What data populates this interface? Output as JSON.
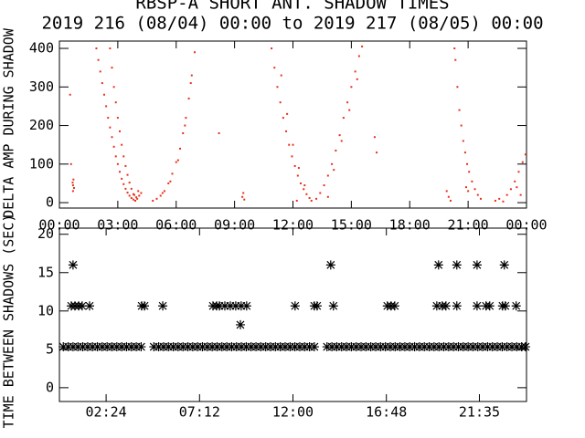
{
  "chart_data": [
    {
      "type": "scatter",
      "title": "RBSP-A SHORT ANT. SHADOW TIMES",
      "subtitle": "2019 216 (08/04) 00:00 to 2019 217 (08/05) 00:00",
      "y_label": "DELTA AMP DURING SHADOW",
      "color": "#e8301a",
      "marker": "dot",
      "xlim": [
        0,
        24
      ],
      "ylim": [
        -14,
        419
      ],
      "xticks": [
        {
          "value": 0,
          "label": "00:00"
        },
        {
          "value": 3,
          "label": "03:00"
        },
        {
          "value": 6,
          "label": "06:00"
        },
        {
          "value": 9,
          "label": "09:00"
        },
        {
          "value": 12,
          "label": "12:00"
        },
        {
          "value": 15,
          "label": "15:00"
        },
        {
          "value": 18,
          "label": "18:00"
        },
        {
          "value": 21,
          "label": "21:00"
        },
        {
          "value": 24,
          "label": "00:00"
        }
      ],
      "yticks": [
        0,
        100,
        200,
        300,
        400
      ],
      "x": [
        0.7,
        0.7,
        0.72,
        0.75,
        0.68,
        0.6,
        0.55,
        1.9,
        2.0,
        2.1,
        2.2,
        2.3,
        2.4,
        2.5,
        2.6,
        2.7,
        2.8,
        2.9,
        3.0,
        3.1,
        3.2,
        3.3,
        3.4,
        3.5,
        3.6,
        3.7,
        3.8,
        3.9,
        2.6,
        2.7,
        2.8,
        2.9,
        3.0,
        3.1,
        3.2,
        3.3,
        3.4,
        3.5,
        3.6,
        3.7,
        3.8,
        3.95,
        4.0,
        4.1,
        4.2,
        4.05,
        3.85,
        4.8,
        5.0,
        5.2,
        5.4,
        5.6,
        5.8,
        6.0,
        6.2,
        6.35,
        6.5,
        6.65,
        6.8,
        6.95,
        5.3,
        5.7,
        6.1,
        6.45,
        6.75,
        8.2,
        9.4,
        9.45,
        9.5,
        10.9,
        11.05,
        11.2,
        11.35,
        11.5,
        11.65,
        11.8,
        11.95,
        12.1,
        12.25,
        12.4,
        12.55,
        12.7,
        12.85,
        12.95,
        11.4,
        11.7,
        12.0,
        12.3,
        12.6,
        13.2,
        13.4,
        13.6,
        13.8,
        14.0,
        14.2,
        14.4,
        14.6,
        14.8,
        15.0,
        15.2,
        15.4,
        15.55,
        14.1,
        14.5,
        14.9,
        15.3,
        16.3,
        16.2,
        13.8,
        12.2,
        20.3,
        20.35,
        20.45,
        20.55,
        20.65,
        20.75,
        20.85,
        20.95,
        21.05,
        21.2,
        21.35,
        21.5,
        21.65,
        19.9,
        20.0,
        20.1,
        20.9,
        21.0,
        22.4,
        22.6,
        22.8,
        23.0,
        23.2,
        23.4,
        23.6,
        23.8,
        23.95,
        23.7,
        23.5
      ],
      "values": [
        30,
        45,
        60,
        38,
        52,
        100,
        280,
        400,
        370,
        340,
        310,
        280,
        250,
        220,
        195,
        170,
        145,
        120,
        100,
        80,
        62,
        48,
        36,
        26,
        18,
        12,
        8,
        5,
        400,
        350,
        300,
        260,
        220,
        185,
        150,
        120,
        95,
        72,
        52,
        36,
        22,
        14,
        10,
        18,
        25,
        30,
        20,
        5,
        10,
        18,
        30,
        50,
        75,
        105,
        140,
        180,
        220,
        270,
        330,
        390,
        25,
        55,
        110,
        200,
        310,
        180,
        15,
        25,
        8,
        400,
        350,
        300,
        260,
        220,
        185,
        150,
        120,
        95,
        70,
        50,
        35,
        22,
        12,
        5,
        330,
        230,
        150,
        90,
        45,
        10,
        25,
        45,
        70,
        100,
        135,
        175,
        220,
        260,
        300,
        340,
        380,
        405,
        85,
        160,
        240,
        320,
        130,
        170,
        15,
        5,
        400,
        370,
        300,
        240,
        200,
        160,
        130,
        100,
        80,
        55,
        35,
        20,
        10,
        30,
        15,
        5,
        40,
        30,
        5,
        10,
        3,
        20,
        35,
        55,
        80,
        105,
        125,
        20,
        40
      ]
    },
    {
      "type": "scatter",
      "y_label": "TIME BETWEEN SHADOWS (SEC)",
      "color": "#000000",
      "marker": "asterisk",
      "xlim": [
        0,
        24
      ],
      "ylim": [
        -1.8,
        20.8
      ],
      "xticks": [
        {
          "value": 2.4,
          "label": "02:24"
        },
        {
          "value": 7.2,
          "label": "07:12"
        },
        {
          "value": 12,
          "label": "12:00"
        },
        {
          "value": 16.8,
          "label": "16:48"
        },
        {
          "value": 21.58,
          "label": "21:35"
        }
      ],
      "yticks": [
        0,
        5,
        10,
        15,
        20
      ],
      "x": [
        0.2,
        0.45,
        0.7,
        0.95,
        1.2,
        1.45,
        1.7,
        1.95,
        2.2,
        2.45,
        2.7,
        2.95,
        3.2,
        3.45,
        3.7,
        3.95,
        4.2,
        4.85,
        5.1,
        5.35,
        5.6,
        5.85,
        6.1,
        6.35,
        6.6,
        6.85,
        7.1,
        7.35,
        7.6,
        7.85,
        8.1,
        8.35,
        8.6,
        8.85,
        9.1,
        9.35,
        9.6,
        9.85,
        10.1,
        10.35,
        10.6,
        10.85,
        11.1,
        11.35,
        11.6,
        11.85,
        12.1,
        12.35,
        12.6,
        12.85,
        13.1,
        13.75,
        14.0,
        14.25,
        14.5,
        14.75,
        15.0,
        15.25,
        15.5,
        15.75,
        16.0,
        16.25,
        16.5,
        16.75,
        17.0,
        17.25,
        17.5,
        17.75,
        18.0,
        18.25,
        18.5,
        18.75,
        19.0,
        19.25,
        19.5,
        19.75,
        20.0,
        20.25,
        20.5,
        20.75,
        21.0,
        21.25,
        21.5,
        21.75,
        22.0,
        22.25,
        22.5,
        22.75,
        23.0,
        23.25,
        23.5,
        23.75,
        23.95,
        0.7,
        13.94,
        19.48,
        20.42,
        21.46,
        22.86,
        0.61,
        0.8,
        0.99,
        1.17,
        1.55,
        4.23,
        4.37,
        5.31,
        7.89,
        8.08,
        8.22,
        8.5,
        8.78,
        9.06,
        9.34,
        9.62,
        12.11,
        13.1,
        13.24,
        14.08,
        16.85,
        17.04,
        17.23,
        19.39,
        19.67,
        19.86,
        20.42,
        21.46,
        21.92,
        22.11,
        22.77,
        22.91,
        23.47,
        9.3
      ],
      "values": [
        5.33,
        5.33,
        5.33,
        5.33,
        5.33,
        5.33,
        5.33,
        5.33,
        5.33,
        5.33,
        5.33,
        5.33,
        5.33,
        5.33,
        5.33,
        5.33,
        5.33,
        5.33,
        5.33,
        5.33,
        5.33,
        5.33,
        5.33,
        5.33,
        5.33,
        5.33,
        5.33,
        5.33,
        5.33,
        5.33,
        5.33,
        5.33,
        5.33,
        5.33,
        5.33,
        5.33,
        5.33,
        5.33,
        5.33,
        5.33,
        5.33,
        5.33,
        5.33,
        5.33,
        5.33,
        5.33,
        5.33,
        5.33,
        5.33,
        5.33,
        5.33,
        5.33,
        5.33,
        5.33,
        5.33,
        5.33,
        5.33,
        5.33,
        5.33,
        5.33,
        5.33,
        5.33,
        5.33,
        5.33,
        5.33,
        5.33,
        5.33,
        5.33,
        5.33,
        5.33,
        5.33,
        5.33,
        5.33,
        5.33,
        5.33,
        5.33,
        5.33,
        5.33,
        5.33,
        5.33,
        5.33,
        5.33,
        5.33,
        5.33,
        5.33,
        5.33,
        5.33,
        5.33,
        5.33,
        5.33,
        5.33,
        5.33,
        5.33,
        16,
        16,
        16,
        16,
        16,
        16,
        10.66,
        10.66,
        10.66,
        10.66,
        10.66,
        10.66,
        10.66,
        10.66,
        10.66,
        10.66,
        10.66,
        10.66,
        10.66,
        10.66,
        10.66,
        10.66,
        10.66,
        10.66,
        10.66,
        10.66,
        10.66,
        10.66,
        10.66,
        10.66,
        10.66,
        10.66,
        10.66,
        10.66,
        10.66,
        10.66,
        10.66,
        10.66,
        10.66,
        8.2
      ]
    }
  ]
}
